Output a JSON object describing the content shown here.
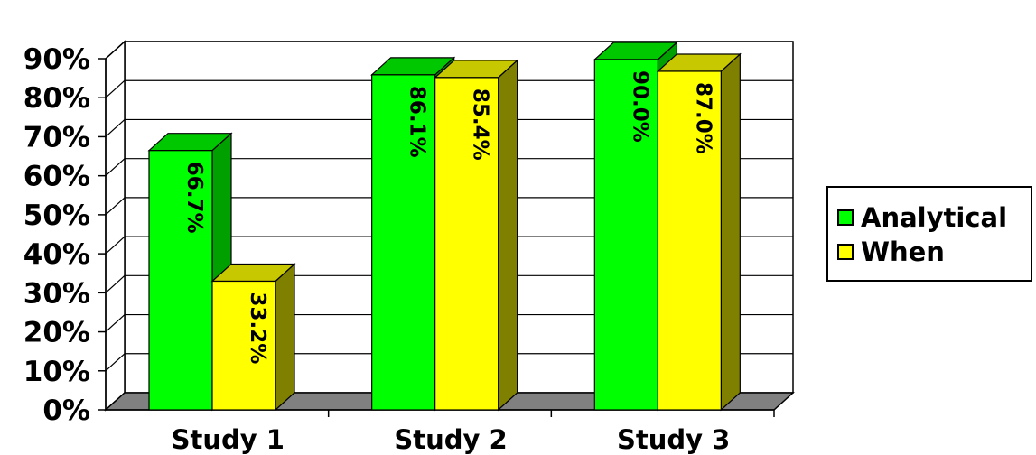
{
  "chart_data": {
    "type": "bar",
    "categories": [
      "Study 1",
      "Study 2",
      "Study 3"
    ],
    "series": [
      {
        "name": "Analytical",
        "values": [
          66.7,
          86.1,
          90.0
        ],
        "labels": [
          "66.7%",
          "86.1%",
          "90.0%"
        ],
        "color": "#00FF00"
      },
      {
        "name": "When",
        "values": [
          33.2,
          85.4,
          87.0
        ],
        "labels": [
          "33.2%",
          "85.4%",
          "87.0%"
        ],
        "color": "#FFFF00"
      }
    ],
    "y_ticks": [
      "0%",
      "10%",
      "20%",
      "30%",
      "40%",
      "50%",
      "60%",
      "70%",
      "80%",
      "90%"
    ],
    "ylim": [
      0,
      90
    ],
    "title": "",
    "xlabel": "",
    "ylabel": "",
    "grid": true,
    "three_d": true,
    "legend_position": "right",
    "colors": {
      "floor": "#808080",
      "grid": "#000000"
    }
  }
}
